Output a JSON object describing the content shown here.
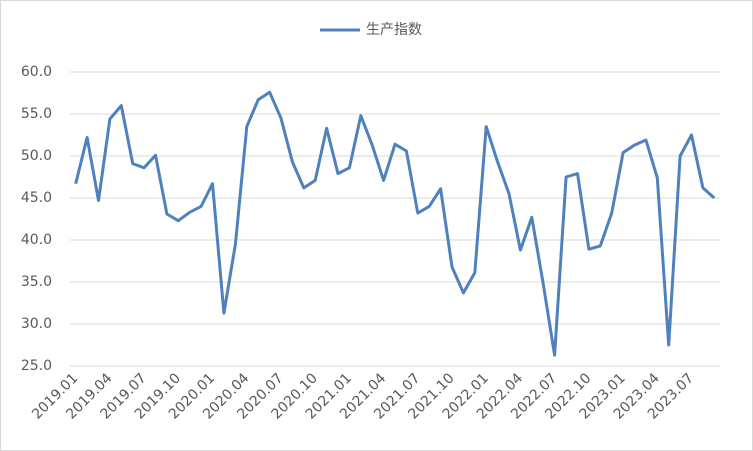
{
  "chart_data": {
    "type": "line",
    "categories": [
      "2019.01",
      null,
      null,
      "2019.04",
      null,
      null,
      "2019.07",
      null,
      null,
      "2019.10",
      null,
      null,
      "2020.01",
      null,
      null,
      "2020.04",
      null,
      null,
      "2020.07",
      null,
      null,
      "2020.10",
      null,
      null,
      "2021.01",
      null,
      null,
      "2021.04",
      null,
      null,
      "2021.07",
      null,
      null,
      "2021.10",
      null,
      null,
      "2022.01",
      null,
      null,
      "2022.04",
      null,
      null,
      "2022.07",
      null,
      null,
      "2022.10",
      null,
      null,
      "2023.01",
      null,
      null,
      "2023.04",
      null,
      null,
      "2023.07",
      null,
      null
    ],
    "series": [
      {
        "name": "生产指数",
        "color": "#4f81bd",
        "values": [
          46.7,
          52.2,
          44.7,
          54.4,
          56.0,
          49.1,
          48.6,
          50.1,
          43.1,
          42.3,
          43.3,
          44.0,
          46.7,
          31.3,
          39.5,
          53.5,
          56.7,
          57.6,
          54.5,
          49.3,
          46.2,
          47.1,
          53.3,
          47.9,
          48.6,
          54.8,
          51.3,
          47.1,
          51.4,
          50.6,
          43.2,
          44.0,
          46.1,
          36.8,
          33.7,
          36.1,
          53.5,
          49.3,
          45.5,
          38.8,
          42.7,
          34.8,
          26.3,
          47.5,
          47.9,
          38.9,
          39.3,
          43.2,
          50.4,
          51.3,
          51.9,
          47.4,
          27.5,
          50.0,
          52.5,
          46.2,
          45.0
        ]
      }
    ],
    "ylim": [
      25,
      60
    ],
    "yticks": [
      {
        "value": 25,
        "label": "25.0"
      },
      {
        "value": 30,
        "label": "30.0"
      },
      {
        "value": 35,
        "label": "35.0"
      },
      {
        "value": 40,
        "label": "40.0"
      },
      {
        "value": 45,
        "label": "45.0"
      },
      {
        "value": 50,
        "label": "50.0"
      },
      {
        "value": 55,
        "label": "55.0"
      },
      {
        "value": 60,
        "label": "60.0"
      }
    ],
    "grid": true,
    "legend": "top"
  }
}
